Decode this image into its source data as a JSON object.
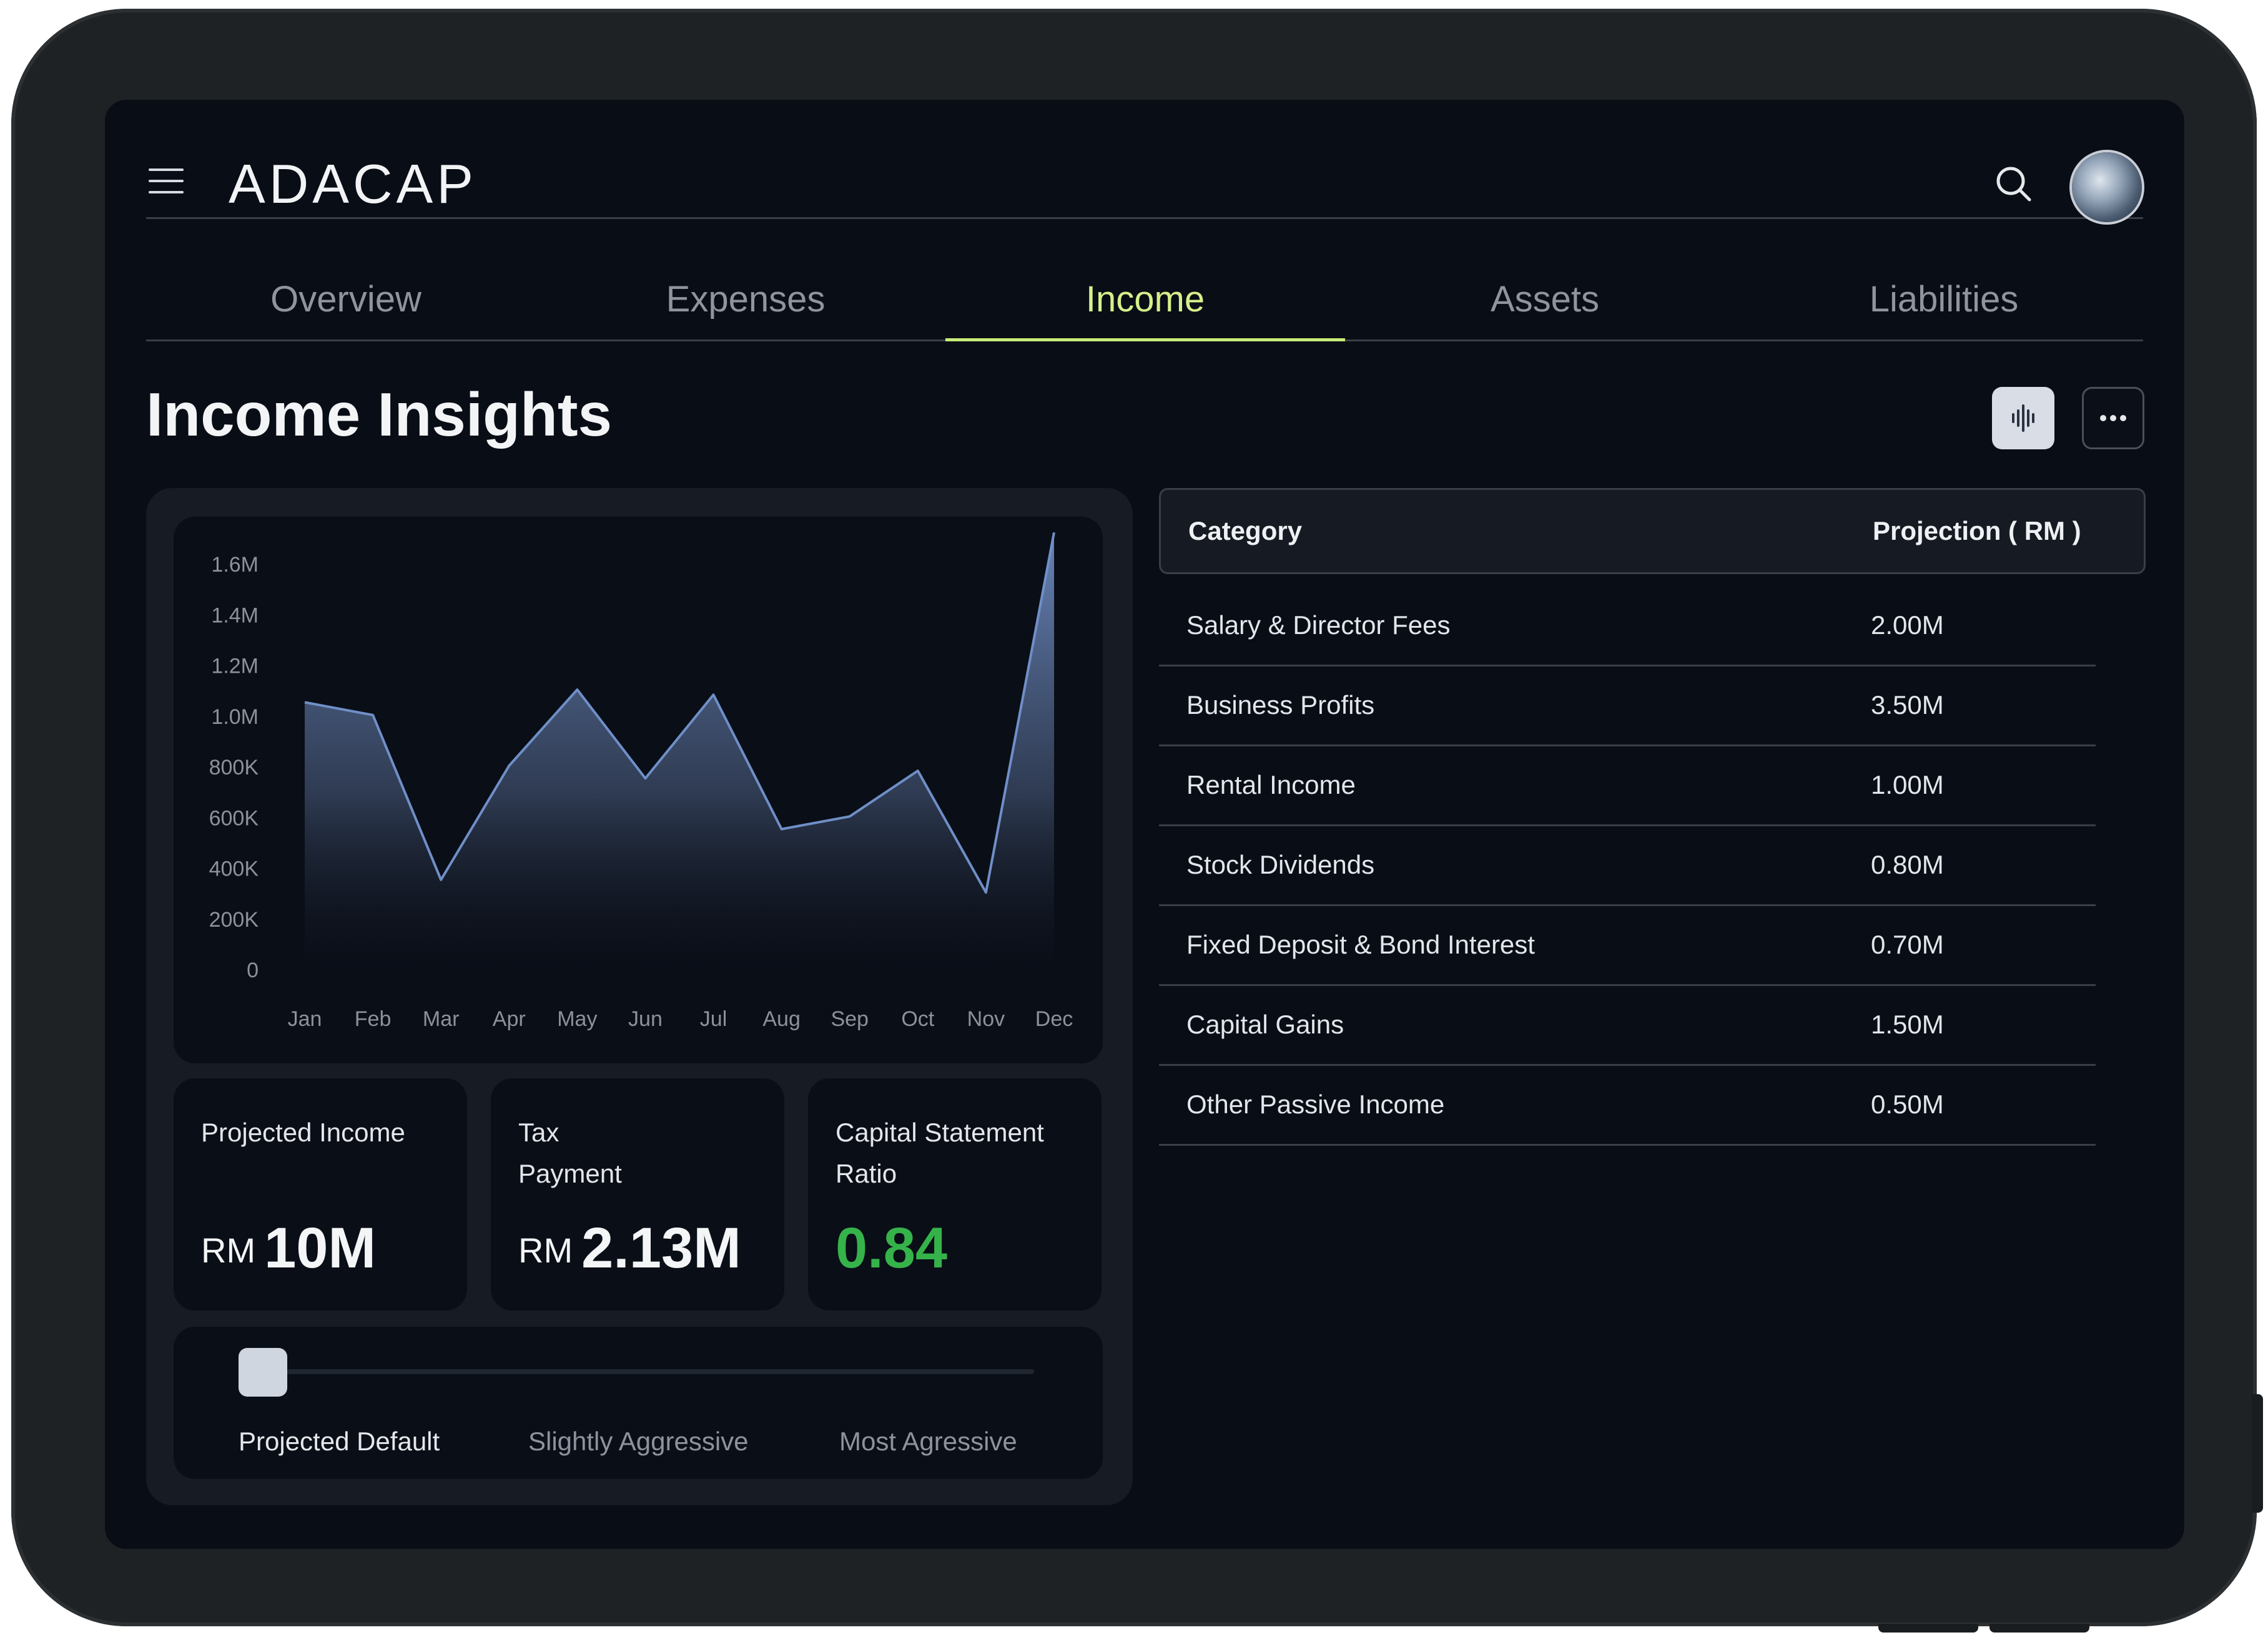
{
  "app": {
    "name": "ADACAP"
  },
  "header": {
    "menu_icon": "hamburger-menu-icon",
    "search_icon": "search-icon",
    "apps_icon": "grid-apps-icon",
    "avatar": "user-avatar"
  },
  "tabs": [
    {
      "label": "Overview",
      "active": false
    },
    {
      "label": "Expenses",
      "active": false
    },
    {
      "label": "Income",
      "active": true
    },
    {
      "label": "Assets",
      "active": false
    },
    {
      "label": "Liabilities",
      "active": false
    }
  ],
  "page": {
    "title": "Income Insights",
    "actions": {
      "chart_toggle_icon": "audio-bars-icon",
      "more_icon": "more-dots-icon"
    }
  },
  "colors": {
    "accent": "#c8ec7a",
    "positive": "#35b34a",
    "series_line": "#6f8fc7"
  },
  "chart_data": {
    "type": "area",
    "title": "",
    "xlabel": "",
    "ylabel": "",
    "categories": [
      "Jan",
      "Feb",
      "Mar",
      "Apr",
      "May",
      "Jun",
      "Jul",
      "Aug",
      "Sep",
      "Oct",
      "Nov",
      "Dec"
    ],
    "values": [
      1050000,
      1000000,
      350000,
      800000,
      1100000,
      750000,
      1080000,
      550000,
      600000,
      780000,
      300000,
      1720000
    ],
    "ylim": [
      0,
      1600000
    ],
    "y_ticks": [
      "0",
      "200K",
      "400K",
      "600K",
      "800K",
      "1.0M",
      "1.2M",
      "1.4M",
      "1.6M"
    ],
    "grid": false
  },
  "stats": [
    {
      "label": "Projected Income",
      "currency": "RM",
      "value": "10M"
    },
    {
      "label": "Tax Payment",
      "currency": "RM",
      "value": "2.13M"
    },
    {
      "label": "Capital Statement Ratio",
      "currency": "",
      "value": "0.84"
    }
  ],
  "slider": {
    "options": [
      "Projected Default",
      "Slightly Aggressive",
      "Most Agressive"
    ],
    "selected": "Projected Default",
    "position": 0
  },
  "table": {
    "headers": [
      "Category",
      "Projection ( RM )"
    ],
    "rows": [
      [
        "Salary & Director Fees",
        "2.00M"
      ],
      [
        "Business Profits",
        "3.50M"
      ],
      [
        "Rental Income",
        "1.00M"
      ],
      [
        "Stock Dividends",
        "0.80M"
      ],
      [
        "Fixed Deposit & Bond Interest",
        "0.70M"
      ],
      [
        "Capital Gains",
        "1.50M"
      ],
      [
        "Other Passive Income",
        "0.50M"
      ]
    ]
  }
}
